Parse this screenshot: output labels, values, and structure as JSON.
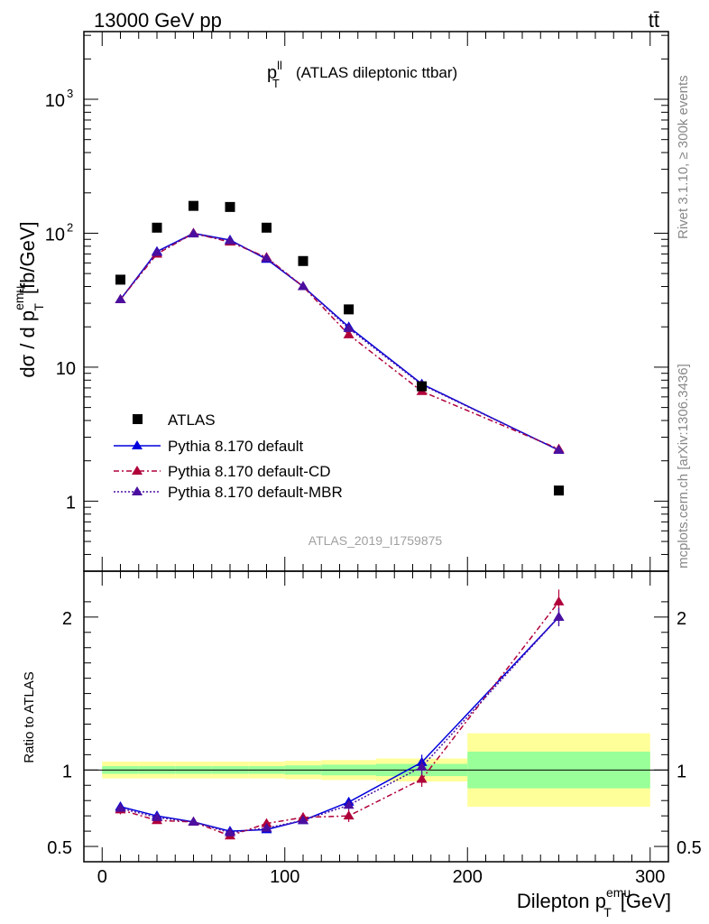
{
  "header": {
    "left": "13000 GeV pp",
    "right": "tt̄",
    "side_top": "Rivet 3.1.10, ≥ 300k events",
    "side_bottom": "mcplots.cern.ch [arXiv:1306.3436]"
  },
  "chart_data": [
    {
      "type": "scatter",
      "panel": "main",
      "title_main": "p",
      "title_sup": "ll",
      "title_sub": "T",
      "title_rest": "(ATLAS dileptonic ttbar)",
      "ylabel": "dσ / d p",
      "ylabel_sup": "emu",
      "ylabel_sub": "T",
      "ylabel_unit": "[fb/GeV]",
      "yscale": "log",
      "ylim": [
        0.3,
        3200
      ],
      "xlim": [
        -10,
        310
      ],
      "yticks": [
        {
          "value": 1,
          "label": "1"
        },
        {
          "value": 10,
          "label": "10"
        },
        {
          "value": 100,
          "label": "10",
          "sup": "2"
        },
        {
          "value": 1000,
          "label": "10",
          "sup": "3"
        }
      ],
      "watermark": "ATLAS_2019_I1759875",
      "legend_position": "lower-left",
      "data": {
        "name": "ATLAS",
        "x": [
          10,
          30,
          50,
          70,
          90,
          110,
          135,
          175,
          250
        ],
        "y": [
          45,
          110,
          160,
          157,
          110,
          62,
          27,
          7.2,
          1.2
        ]
      },
      "series": [
        {
          "name": "Pythia 8.170 default",
          "color": "#0000dd",
          "style": "solid",
          "x": [
            10,
            30,
            50,
            70,
            90,
            110,
            135,
            175,
            250
          ],
          "y": [
            32,
            73,
            100,
            89,
            64,
            40,
            20,
            7.5,
            2.4
          ]
        },
        {
          "name": "Pythia 8.170 default-CD",
          "color": "#b0003a",
          "style": "dashdot",
          "x": [
            10,
            30,
            50,
            70,
            90,
            110,
            135,
            175,
            250
          ],
          "y": [
            32,
            70,
            100,
            86,
            66,
            40,
            17.5,
            6.6,
            2.45
          ]
        },
        {
          "name": "Pythia 8.170 default-MBR",
          "color": "#4b0fa0",
          "style": "dotted",
          "x": [
            10,
            30,
            50,
            70,
            90,
            110,
            135,
            175,
            250
          ],
          "y": [
            32,
            72,
            99,
            88,
            65,
            40,
            19.5,
            7.4,
            2.4
          ]
        }
      ]
    },
    {
      "type": "line",
      "panel": "ratio",
      "ylabel": "Ratio to ATLAS",
      "xlabel": "Dilepton p",
      "xlabel_sup": "emu",
      "xlabel_sub": "T",
      "xlabel_unit": "[GeV]",
      "xlim": [
        -10,
        310
      ],
      "ylim": [
        0.4,
        2.3
      ],
      "xticks": [
        0,
        100,
        200,
        300
      ],
      "yticks": [
        0.5,
        1,
        2
      ],
      "reference": 1,
      "bands": [
        {
          "x0": 0,
          "x1": 20,
          "inner": [
            0.975,
            1.025
          ],
          "outer": [
            0.945,
            1.055
          ]
        },
        {
          "x0": 20,
          "x1": 40,
          "inner": [
            0.975,
            1.025
          ],
          "outer": [
            0.945,
            1.055
          ]
        },
        {
          "x0": 40,
          "x1": 60,
          "inner": [
            0.975,
            1.025
          ],
          "outer": [
            0.945,
            1.055
          ]
        },
        {
          "x0": 60,
          "x1": 80,
          "inner": [
            0.975,
            1.025
          ],
          "outer": [
            0.945,
            1.055
          ]
        },
        {
          "x0": 80,
          "x1": 100,
          "inner": [
            0.975,
            1.025
          ],
          "outer": [
            0.945,
            1.055
          ]
        },
        {
          "x0": 100,
          "x1": 120,
          "inner": [
            0.97,
            1.03
          ],
          "outer": [
            0.94,
            1.06
          ]
        },
        {
          "x0": 120,
          "x1": 150,
          "inner": [
            0.965,
            1.035
          ],
          "outer": [
            0.935,
            1.065
          ]
        },
        {
          "x0": 150,
          "x1": 200,
          "inner": [
            0.96,
            1.04
          ],
          "outer": [
            0.925,
            1.075
          ]
        },
        {
          "x0": 200,
          "x1": 300,
          "inner": [
            0.88,
            1.12
          ],
          "outer": [
            0.76,
            1.24
          ]
        }
      ],
      "series": [
        {
          "name": "Pythia 8.170 default",
          "color": "#0000dd",
          "style": "solid",
          "x": [
            10,
            30,
            50,
            70,
            90,
            110,
            135,
            175,
            250
          ],
          "y": [
            0.76,
            0.7,
            0.66,
            0.6,
            0.61,
            0.67,
            0.79,
            1.05,
            2.0
          ],
          "err": [
            0.02,
            0.015,
            0.015,
            0.015,
            0.015,
            0.02,
            0.03,
            0.05,
            0.06
          ]
        },
        {
          "name": "Pythia 8.170 default-CD",
          "color": "#b0003a",
          "style": "dashdot",
          "x": [
            10,
            30,
            50,
            70,
            90,
            110,
            135,
            175,
            250
          ],
          "y": [
            0.74,
            0.67,
            0.66,
            0.57,
            0.65,
            0.69,
            0.7,
            0.94,
            2.1
          ],
          "err": [
            0.03,
            0.02,
            0.015,
            0.02,
            0.025,
            0.03,
            0.04,
            0.05,
            0.08
          ]
        },
        {
          "name": "Pythia 8.170 default-MBR",
          "color": "#4b0fa0",
          "style": "dotted",
          "x": [
            10,
            30,
            50,
            70,
            90,
            110,
            135,
            175,
            250
          ],
          "y": [
            0.75,
            0.69,
            0.66,
            0.59,
            0.62,
            0.67,
            0.77,
            1.02,
            2.0
          ],
          "err": [
            0.02,
            0.015,
            0.015,
            0.015,
            0.015,
            0.02,
            0.03,
            0.05,
            0.06
          ]
        }
      ]
    }
  ]
}
